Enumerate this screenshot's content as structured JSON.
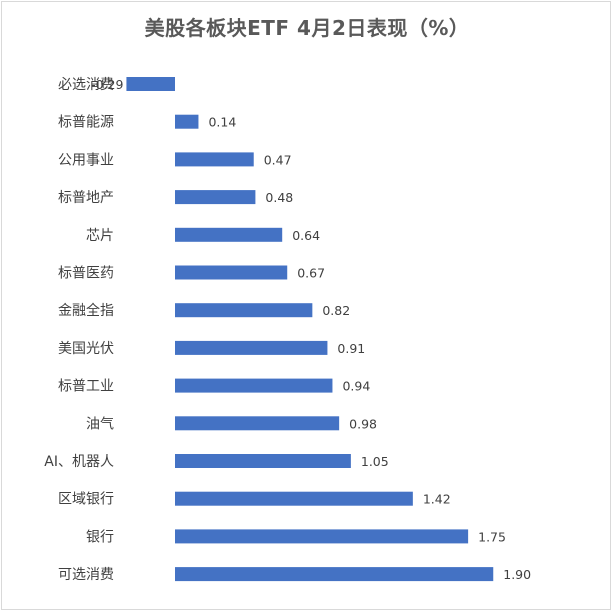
{
  "chart_data": {
    "type": "bar",
    "orientation": "horizontal",
    "title": "美股各板块ETF 4月2日表现（%）",
    "categories": [
      "必选消费",
      "标普能源",
      "公用事业",
      "标普地产",
      "芯片",
      "标普医药",
      "金融全指",
      "美国光伏",
      "标普工业",
      "油气",
      "AI、机器人",
      "区域银行",
      "银行",
      "可选消费"
    ],
    "values": [
      -0.29,
      0.14,
      0.47,
      0.48,
      0.64,
      0.67,
      0.82,
      0.91,
      0.94,
      0.98,
      1.05,
      1.42,
      1.75,
      1.9
    ],
    "value_labels": [
      "-0.29",
      "0.14",
      "0.47",
      "0.48",
      "0.64",
      "0.67",
      "0.82",
      "0.91",
      "0.94",
      "0.98",
      "1.05",
      "1.42",
      "1.75",
      "1.90"
    ],
    "bar_color": "#4472C4",
    "grid": false,
    "legend": "none"
  }
}
